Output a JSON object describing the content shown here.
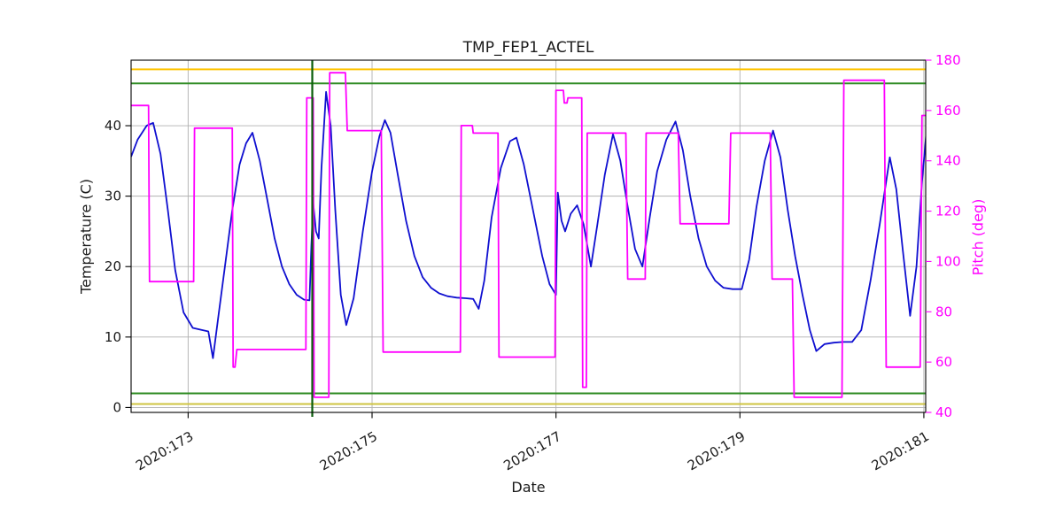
{
  "chart_data": {
    "type": "line",
    "title": "TMP_FEP1_ACTEL",
    "xlabel": "Date",
    "ylabel_left": "Temperature (C)",
    "ylabel_right": "Pitch (deg)",
    "grid": true,
    "xlim": [
      172.38,
      181.02
    ],
    "ylim_left": [
      -0.7,
      49.3
    ],
    "ylim_right": [
      40,
      180
    ],
    "x_ticks": [
      {
        "value": 173,
        "label": "2020:173"
      },
      {
        "value": 175,
        "label": "2020:175"
      },
      {
        "value": 177,
        "label": "2020:177"
      },
      {
        "value": 179,
        "label": "2020:179"
      },
      {
        "value": 181,
        "label": "2020:181"
      }
    ],
    "y_ticks_left": [
      0,
      10,
      20,
      30,
      40
    ],
    "y_ticks_right": [
      40,
      60,
      80,
      100,
      120,
      140,
      160,
      180
    ],
    "colors": {
      "temperature": "#0f0fd0",
      "pitch": "#ff00ff",
      "grid": "#b0b0b0",
      "axis_text": "#1a1a1a",
      "right_axis": "#ff00ff",
      "yellow_high": "#ffc400",
      "yellow_low": "#cfc540",
      "green_limit": "#2e8b22",
      "vertical_marker": "#0b5d0b"
    },
    "limit_lines": [
      {
        "name": "yellow-high-limit",
        "axis": "left",
        "value": 48.0,
        "color_key": "yellow_high"
      },
      {
        "name": "green-high-limit",
        "axis": "left",
        "value": 46.0,
        "color_key": "green_limit"
      },
      {
        "name": "green-low-limit",
        "axis": "left",
        "value": 2.0,
        "color_key": "green_limit"
      },
      {
        "name": "yellow-low-limit",
        "axis": "left",
        "value": 0.5,
        "color_key": "yellow_low"
      }
    ],
    "vertical_marker": {
      "x": 174.35,
      "color_key": "vertical_marker"
    },
    "series": [
      {
        "name": "temperature",
        "axis": "left",
        "color_key": "temperature",
        "x": [
          172.38,
          172.45,
          172.55,
          172.62,
          172.7,
          172.78,
          172.86,
          172.95,
          173.05,
          173.15,
          173.22,
          173.27,
          173.33,
          173.4,
          173.48,
          173.56,
          173.63,
          173.7,
          173.78,
          173.86,
          173.94,
          174.02,
          174.1,
          174.18,
          174.26,
          174.32,
          174.34,
          174.36,
          174.39,
          174.42,
          174.45,
          174.5,
          174.55,
          174.6,
          174.66,
          174.72,
          174.8,
          174.9,
          175.0,
          175.08,
          175.14,
          175.2,
          175.28,
          175.37,
          175.46,
          175.55,
          175.64,
          175.73,
          175.82,
          175.92,
          176.02,
          176.1,
          176.16,
          176.22,
          176.3,
          176.4,
          176.5,
          176.57,
          176.65,
          176.75,
          176.85,
          176.93,
          177.0,
          177.02,
          177.06,
          177.1,
          177.16,
          177.23,
          177.3,
          177.38,
          177.45,
          177.53,
          177.62,
          177.7,
          177.78,
          177.86,
          177.94,
          178.02,
          178.1,
          178.2,
          178.3,
          178.38,
          178.46,
          178.55,
          178.64,
          178.73,
          178.82,
          178.92,
          179.02,
          179.1,
          179.18,
          179.27,
          179.36,
          179.44,
          179.52,
          179.6,
          179.68,
          179.76,
          179.83,
          179.92,
          180.02,
          180.12,
          180.22,
          180.32,
          180.42,
          180.52,
          180.63,
          180.7,
          180.77,
          180.85,
          180.92,
          180.98,
          181.04
        ],
        "y": [
          35.6,
          38.0,
          40.0,
          40.4,
          36.0,
          28.0,
          19.5,
          13.5,
          11.3,
          11.0,
          10.8,
          7.0,
          13.0,
          20.0,
          28.0,
          34.5,
          37.5,
          39.0,
          35.0,
          29.5,
          24.0,
          20.0,
          17.5,
          16.0,
          15.3,
          15.2,
          23.0,
          29.0,
          25.0,
          24.0,
          34.0,
          44.8,
          40.0,
          28.0,
          16.0,
          11.7,
          15.5,
          25.0,
          33.5,
          38.5,
          40.8,
          39.0,
          33.0,
          26.5,
          21.5,
          18.5,
          17.0,
          16.2,
          15.8,
          15.6,
          15.5,
          15.4,
          14.0,
          18.0,
          27.0,
          34.0,
          37.8,
          38.3,
          34.5,
          28.0,
          21.5,
          17.5,
          16.0,
          30.5,
          26.5,
          25.0,
          27.5,
          28.7,
          26.0,
          20.0,
          26.0,
          33.0,
          38.8,
          35.0,
          28.5,
          22.5,
          20.0,
          27.0,
          33.5,
          38.0,
          40.6,
          36.5,
          30.0,
          24.0,
          20.0,
          18.0,
          17.0,
          16.8,
          16.8,
          21.0,
          28.5,
          35.0,
          39.3,
          35.5,
          28.0,
          21.5,
          16.0,
          11.0,
          8.0,
          9.0,
          9.2,
          9.3,
          9.3,
          11.0,
          18.0,
          26.0,
          35.5,
          31.0,
          22.5,
          13.0,
          20.0,
          32.0,
          41.0
        ]
      },
      {
        "name": "pitch",
        "axis": "right",
        "color_key": "pitch",
        "x": [
          172.38,
          172.57,
          172.58,
          173.06,
          173.07,
          173.48,
          173.49,
          173.51,
          173.53,
          174.28,
          174.29,
          174.36,
          174.37,
          174.53,
          174.54,
          174.71,
          174.73,
          175.1,
          175.12,
          175.96,
          175.97,
          176.09,
          176.1,
          176.37,
          176.38,
          176.99,
          177.0,
          177.08,
          177.09,
          177.12,
          177.13,
          177.28,
          177.29,
          177.33,
          177.34,
          177.76,
          177.78,
          177.97,
          177.98,
          178.33,
          178.35,
          178.88,
          178.9,
          179.33,
          179.35,
          179.57,
          179.59,
          180.11,
          180.13,
          180.57,
          180.59,
          180.96,
          180.98,
          181.05
        ],
        "y": [
          162,
          162,
          92,
          92,
          153,
          153,
          58,
          58,
          65,
          65,
          165,
          165,
          46,
          46,
          175,
          175,
          152,
          152,
          64,
          64,
          154,
          154,
          151,
          151,
          62,
          62,
          168,
          168,
          163,
          163,
          165,
          165,
          50,
          50,
          151,
          151,
          93,
          93,
          151,
          151,
          115,
          115,
          151,
          151,
          93,
          93,
          46,
          46,
          172,
          172,
          58,
          58,
          158,
          158
        ]
      }
    ]
  }
}
